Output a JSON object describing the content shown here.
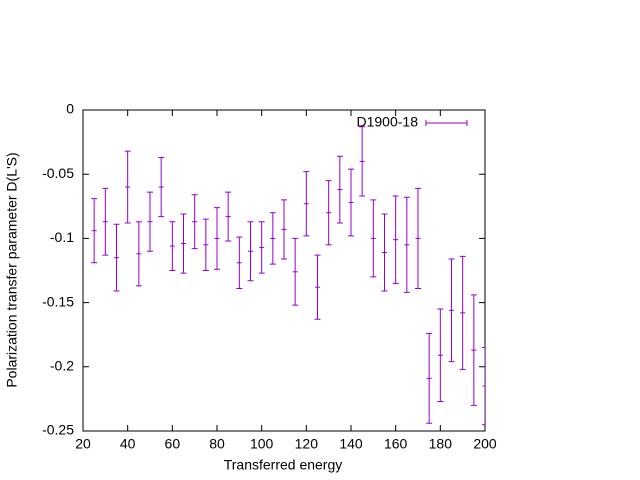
{
  "chart_data": {
    "type": "errorbar",
    "xlabel": "Transferred energy",
    "ylabel": "Polarization transfer parameter D(L'S)",
    "xlim": [
      20,
      200
    ],
    "ylim": [
      -0.25,
      0
    ],
    "xticks": [
      20,
      40,
      60,
      80,
      100,
      120,
      140,
      160,
      180,
      200
    ],
    "yticks": [
      0,
      -0.05,
      -0.1,
      -0.15,
      -0.2,
      -0.25
    ],
    "legend": "top-right",
    "x": [
      25,
      30,
      35,
      40,
      45,
      50,
      55,
      60,
      65,
      70,
      75,
      80,
      85,
      90,
      95,
      100,
      105,
      110,
      115,
      120,
      125,
      130,
      135,
      140,
      145,
      150,
      155,
      160,
      165,
      170,
      175,
      180,
      185,
      190,
      195,
      200
    ],
    "series": [
      {
        "name": "D1900-18",
        "color": "#9400d3",
        "values": [
          -0.094,
          -0.087,
          -0.115,
          -0.06,
          -0.112,
          -0.087,
          -0.06,
          -0.106,
          -0.104,
          -0.087,
          -0.105,
          -0.1,
          -0.083,
          -0.119,
          -0.11,
          -0.107,
          -0.1,
          -0.093,
          -0.126,
          -0.073,
          -0.138,
          -0.08,
          -0.062,
          -0.072,
          -0.04,
          -0.1,
          -0.111,
          -0.101,
          -0.105,
          -0.1,
          -0.209,
          -0.191,
          -0.156,
          -0.158,
          -0.187,
          -0.215
        ],
        "errors": [
          0.025,
          0.026,
          0.026,
          0.028,
          0.025,
          0.023,
          0.023,
          0.019,
          0.023,
          0.021,
          0.02,
          0.024,
          0.019,
          0.02,
          0.023,
          0.02,
          0.02,
          0.023,
          0.026,
          0.025,
          0.025,
          0.025,
          0.026,
          0.026,
          0.027,
          0.03,
          0.03,
          0.034,
          0.037,
          0.039,
          0.035,
          0.036,
          0.04,
          0.044,
          0.043,
          0.03
        ]
      }
    ]
  }
}
